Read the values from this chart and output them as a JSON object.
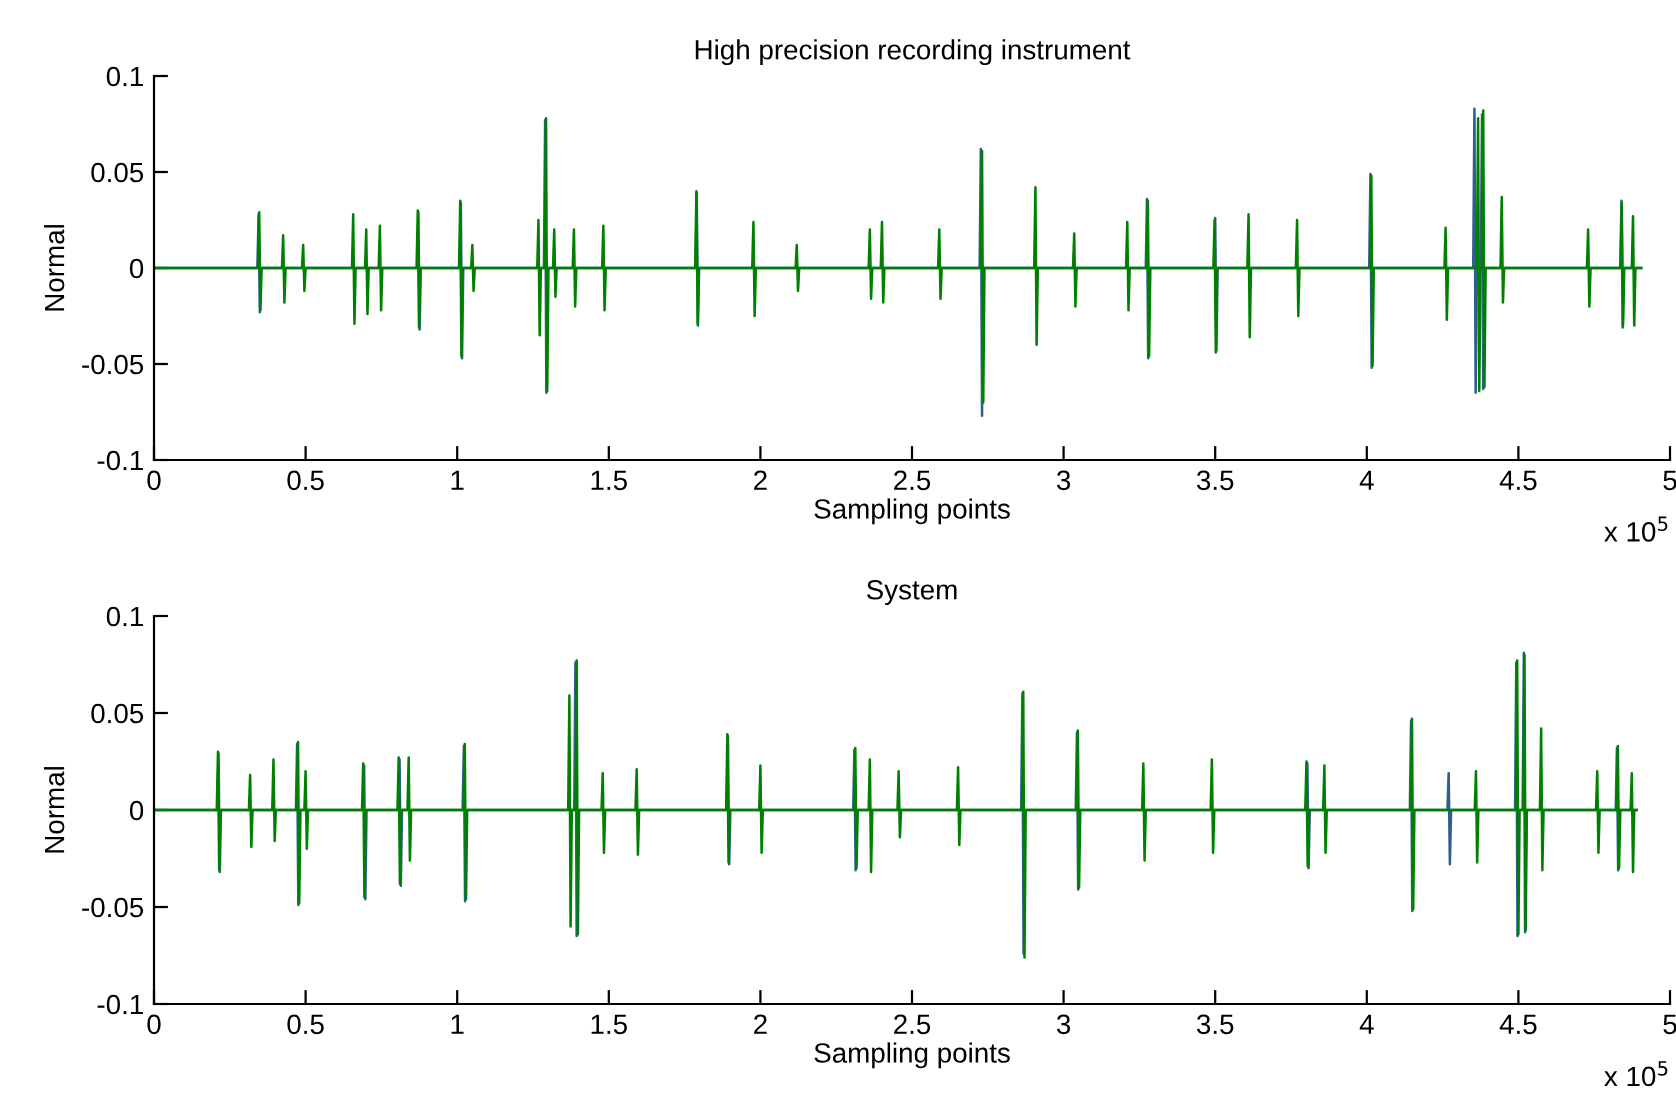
{
  "chart_data": [
    {
      "type": "line",
      "title": "High precision recording instrument",
      "xlabel": "Sampling points",
      "ylabel": "Normal",
      "annotations": [
        "x 10$^{5}$"
      ],
      "xlim": [
        0,
        5
      ],
      "ylim": [
        -0.1,
        0.1
      ],
      "xticks": [
        0,
        0.5,
        1,
        1.5,
        2,
        2.5,
        3,
        3.5,
        4,
        4.5,
        5
      ],
      "yticks": [
        -0.1,
        -0.05,
        0,
        0.05,
        0.1
      ],
      "series": [
        {
          "color": "#2e5e8e",
          "x": [
            0,
            0.341,
            0.345,
            0.349,
            0.353,
            0.868,
            0.872,
            0.876,
            0.88,
            1.008,
            1.012,
            1.016,
            1.02,
            1.286,
            1.29,
            1.294,
            1.298,
            1.786,
            1.79,
            1.794,
            1.798,
            2.723,
            2.727,
            2.731,
            2.735,
            3.271,
            3.275,
            3.279,
            3.283,
            3.496,
            3.5,
            3.504,
            3.508,
            4.008,
            4.012,
            4.016,
            4.02,
            4.351,
            4.355,
            4.359,
            4.363,
            4.376,
            4.38,
            4.384,
            4.388,
            4.836,
            4.84,
            4.844,
            4.848,
            4.905
          ],
          "values": [
            0,
            0,
            0.028,
            -0.023,
            0,
            0,
            0.029,
            -0.032,
            0,
            0,
            0.034,
            -0.047,
            0,
            0,
            0.077,
            -0.065,
            0,
            0,
            0.039,
            -0.03,
            0,
            0,
            0.062,
            -0.077,
            0,
            0,
            0.036,
            -0.047,
            0,
            0,
            0.026,
            -0.043,
            0,
            0,
            0.049,
            -0.052,
            0,
            0,
            0.083,
            -0.065,
            0,
            0,
            0.08,
            -0.063,
            0,
            0,
            0.035,
            -0.031,
            0,
            0
          ]
        },
        {
          "color": "#008000",
          "x": [
            0,
            0.343,
            0.347,
            0.351,
            0.355,
            0.422,
            0.426,
            0.43,
            0.434,
            0.488,
            0.492,
            0.496,
            0.5,
            0.653,
            0.657,
            0.661,
            0.665,
            0.696,
            0.7,
            0.704,
            0.708,
            0.741,
            0.745,
            0.749,
            0.753,
            0.866,
            0.87,
            0.874,
            0.878,
            1.006,
            1.01,
            1.014,
            1.018,
            1.046,
            1.05,
            1.054,
            1.058,
            1.264,
            1.268,
            1.272,
            1.276,
            1.289,
            1.293,
            1.297,
            1.301,
            1.316,
            1.32,
            1.324,
            1.328,
            1.381,
            1.385,
            1.389,
            1.393,
            1.478,
            1.482,
            1.486,
            1.49,
            1.785,
            1.789,
            1.793,
            1.797,
            1.973,
            1.977,
            1.981,
            1.985,
            2.116,
            2.12,
            2.124,
            2.128,
            2.357,
            2.361,
            2.365,
            2.369,
            2.397,
            2.401,
            2.405,
            2.409,
            2.586,
            2.59,
            2.594,
            2.598,
            2.727,
            2.731,
            2.735,
            2.739,
            2.903,
            2.907,
            2.911,
            2.915,
            3.031,
            3.035,
            3.039,
            3.043,
            3.206,
            3.21,
            3.214,
            3.218,
            3.274,
            3.278,
            3.282,
            3.286,
            3.494,
            3.498,
            3.502,
            3.506,
            3.606,
            3.61,
            3.614,
            3.618,
            3.766,
            3.77,
            3.774,
            3.778,
            4.011,
            4.015,
            4.019,
            4.023,
            4.256,
            4.26,
            4.264,
            4.268,
            4.363,
            4.367,
            4.371,
            4.375,
            4.38,
            4.384,
            4.388,
            4.392,
            4.441,
            4.445,
            4.449,
            4.453,
            4.726,
            4.73,
            4.734,
            4.738,
            4.837,
            4.841,
            4.845,
            4.849,
            4.874,
            4.878,
            4.882,
            4.886,
            4.905
          ],
          "values": [
            0,
            0,
            0.029,
            -0.022,
            0,
            0,
            0.017,
            -0.018,
            0,
            0,
            0.012,
            -0.012,
            0,
            0,
            0.028,
            -0.029,
            0,
            0,
            0.02,
            -0.024,
            0,
            0,
            0.022,
            -0.022,
            0,
            0,
            0.03,
            -0.031,
            0,
            0,
            0.035,
            -0.046,
            0,
            0,
            0.012,
            -0.012,
            0,
            0,
            0.025,
            -0.035,
            0,
            0,
            0.078,
            -0.064,
            0,
            0,
            0.02,
            -0.015,
            0,
            0,
            0.02,
            -0.02,
            0,
            0,
            0.022,
            -0.022,
            0,
            0,
            0.04,
            -0.029,
            0,
            0,
            0.024,
            -0.025,
            0,
            0,
            0.012,
            -0.012,
            0,
            0,
            0.02,
            -0.016,
            0,
            0,
            0.024,
            -0.018,
            0,
            0,
            0.02,
            -0.016,
            0,
            0,
            0.061,
            -0.07,
            0,
            0,
            0.042,
            -0.04,
            0,
            0,
            0.018,
            -0.02,
            0,
            0,
            0.024,
            -0.022,
            0,
            0,
            0.035,
            -0.046,
            0,
            0,
            0.025,
            -0.044,
            0,
            0,
            0.028,
            -0.036,
            0,
            0,
            0.025,
            -0.025,
            0,
            0,
            0.048,
            -0.051,
            0,
            0,
            0.021,
            -0.027,
            0,
            0,
            0.078,
            -0.064,
            0,
            0,
            0.082,
            -0.062,
            0,
            0,
            0.037,
            -0.018,
            0,
            0,
            0.02,
            -0.02,
            0,
            0,
            0.034,
            -0.03,
            0,
            0,
            0.027,
            -0.03,
            0,
            0
          ]
        }
      ]
    },
    {
      "type": "line",
      "title": "System",
      "xlabel": "Sampling points",
      "ylabel": "Normal",
      "annotations": [
        "x 10$^{5}$"
      ],
      "xlim": [
        0,
        5
      ],
      "ylim": [
        -0.1,
        0.1
      ],
      "xticks": [
        0,
        0.5,
        1,
        1.5,
        2,
        2.5,
        3,
        3.5,
        4,
        4.5,
        5
      ],
      "yticks": [
        -0.1,
        -0.05,
        0,
        0.05,
        0.1
      ],
      "series": [
        {
          "color": "#2e5e8e",
          "x": [
            0,
            0.209,
            0.213,
            0.217,
            0.221,
            0.468,
            0.472,
            0.476,
            0.48,
            0.689,
            0.693,
            0.697,
            0.701,
            0.806,
            0.81,
            0.814,
            0.818,
            1.018,
            1.022,
            1.026,
            1.03,
            1.386,
            1.39,
            1.394,
            1.398,
            1.889,
            1.893,
            1.897,
            1.901,
            2.306,
            2.31,
            2.314,
            2.318,
            2.86,
            2.864,
            2.868,
            2.872,
            3.04,
            3.044,
            3.048,
            3.052,
            3.8,
            3.804,
            3.808,
            3.812,
            4.142,
            4.146,
            4.15,
            4.154,
            4.266,
            4.27,
            4.274,
            4.278,
            4.489,
            4.493,
            4.497,
            4.501,
            4.514,
            4.518,
            4.522,
            4.526,
            4.821,
            4.825,
            4.829,
            4.833,
            4.89
          ],
          "values": [
            0,
            0,
            0.029,
            -0.032,
            0,
            0,
            0.034,
            -0.049,
            0,
            0,
            0.023,
            -0.046,
            0,
            0,
            0.026,
            -0.039,
            0,
            0,
            0.033,
            -0.047,
            0,
            0,
            0.076,
            -0.065,
            0,
            0,
            0.038,
            -0.028,
            0,
            0,
            0.031,
            -0.031,
            0,
            0,
            0.06,
            -0.074,
            0,
            0,
            0.04,
            -0.041,
            0,
            0,
            0.024,
            -0.03,
            0,
            0,
            0.046,
            -0.052,
            0,
            0,
            0.019,
            -0.028,
            0,
            0,
            0.076,
            -0.065,
            0,
            0,
            0.081,
            -0.063,
            0,
            0,
            0.032,
            -0.031,
            0,
            0
          ]
        },
        {
          "color": "#008000",
          "x": [
            0,
            0.207,
            0.211,
            0.215,
            0.219,
            0.313,
            0.317,
            0.321,
            0.325,
            0.39,
            0.394,
            0.398,
            0.402,
            0.471,
            0.475,
            0.479,
            0.483,
            0.496,
            0.5,
            0.504,
            0.508,
            0.686,
            0.69,
            0.694,
            0.698,
            0.803,
            0.807,
            0.811,
            0.815,
            0.836,
            0.84,
            0.844,
            0.848,
            1.021,
            1.025,
            1.029,
            1.033,
            1.366,
            1.37,
            1.374,
            1.378,
            1.39,
            1.394,
            1.398,
            1.402,
            1.476,
            1.48,
            1.484,
            1.488,
            1.588,
            1.592,
            1.596,
            1.6,
            1.887,
            1.891,
            1.895,
            1.899,
            1.996,
            2.0,
            2.004,
            2.008,
            2.309,
            2.313,
            2.317,
            2.321,
            2.357,
            2.361,
            2.365,
            2.369,
            2.452,
            2.456,
            2.46,
            2.464,
            2.648,
            2.652,
            2.656,
            2.66,
            2.863,
            2.867,
            2.871,
            2.875,
            3.043,
            3.047,
            3.051,
            3.055,
            3.259,
            3.263,
            3.267,
            3.271,
            3.485,
            3.489,
            3.493,
            3.497,
            3.797,
            3.801,
            3.805,
            3.809,
            3.856,
            3.86,
            3.864,
            3.868,
            4.145,
            4.149,
            4.153,
            4.157,
            4.356,
            4.36,
            4.364,
            4.368,
            4.492,
            4.496,
            4.5,
            4.504,
            4.516,
            4.52,
            4.524,
            4.528,
            4.571,
            4.575,
            4.579,
            4.583,
            4.756,
            4.76,
            4.764,
            4.768,
            4.824,
            4.828,
            4.832,
            4.836,
            4.87,
            4.874,
            4.878,
            4.882,
            4.89
          ],
          "values": [
            0,
            0,
            0.03,
            -0.031,
            0,
            0,
            0.018,
            -0.019,
            0,
            0,
            0.026,
            -0.016,
            0,
            0,
            0.035,
            -0.048,
            0,
            0,
            0.02,
            -0.02,
            0,
            0,
            0.024,
            -0.045,
            0,
            0,
            0.027,
            -0.038,
            0,
            0,
            0.027,
            -0.026,
            0,
            0,
            0.034,
            -0.046,
            0,
            0,
            0.059,
            -0.06,
            0,
            0,
            0.077,
            -0.064,
            0,
            0,
            0.019,
            -0.022,
            0,
            0,
            0.021,
            -0.023,
            0,
            0,
            0.039,
            -0.027,
            0,
            0,
            0.023,
            -0.022,
            0,
            0,
            0.032,
            -0.03,
            0,
            0,
            0.026,
            -0.032,
            0,
            0,
            0.02,
            -0.014,
            0,
            0,
            0.022,
            -0.018,
            0,
            0,
            0.061,
            -0.076,
            0,
            0,
            0.041,
            -0.04,
            0,
            0,
            0.024,
            -0.026,
            0,
            0,
            0.026,
            -0.022,
            0,
            0,
            0.025,
            -0.029,
            0,
            0,
            0.023,
            -0.022,
            0,
            0,
            0.047,
            -0.051,
            0,
            0,
            0.02,
            -0.027,
            0,
            0,
            0.077,
            -0.064,
            0,
            0,
            0.08,
            -0.062,
            0,
            0,
            0.042,
            -0.031,
            0,
            0,
            0.02,
            -0.022,
            0,
            0,
            0.033,
            -0.03,
            0,
            0,
            0.019,
            -0.032,
            0,
            0
          ]
        }
      ]
    }
  ]
}
